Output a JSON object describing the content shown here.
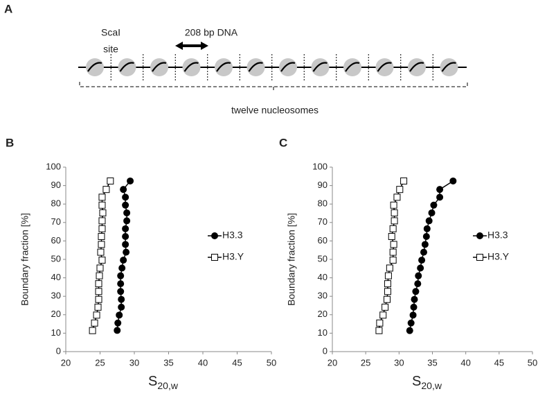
{
  "diagram": {
    "panel_label": "A",
    "site_label": "ScaI",
    "site_label_2": "site",
    "dna_label": "208 bp DNA",
    "array_label": "twelve nucleosomes"
  },
  "chart_data": [
    {
      "type": "scatter",
      "panel_label": "B",
      "x_label": "S",
      "x_label_sub": "20,w",
      "y_label": "Boundary fraction [%]",
      "xlim": [
        20,
        50
      ],
      "xticks": [
        20,
        25,
        30,
        35,
        40,
        45,
        50
      ],
      "ylim": [
        0,
        100
      ],
      "yticks": [
        0,
        10,
        20,
        30,
        40,
        50,
        60,
        70,
        80,
        90,
        100
      ],
      "series": [
        {
          "name": "H3.3",
          "color": "#000000",
          "marker": "circle",
          "x": [
            27.5,
            27.6,
            27.8,
            28.1,
            28.1,
            28.0,
            28.0,
            28.0,
            28.2,
            28.4,
            28.8,
            28.7,
            28.7,
            28.7,
            28.9,
            28.9,
            28.7,
            28.7,
            28.4,
            29.4
          ],
          "values": [
            11.5,
            15.5,
            19.8,
            24.1,
            28.3,
            32.6,
            36.8,
            41.1,
            45.3,
            49.6,
            53.9,
            58.1,
            62.4,
            66.6,
            70.9,
            75.2,
            79.4,
            83.7,
            87.9,
            92.5
          ]
        },
        {
          "name": "H3.Y",
          "color": "#000000",
          "marker": "square",
          "x": [
            23.9,
            24.2,
            24.5,
            24.7,
            24.8,
            24.8,
            24.8,
            24.9,
            25.0,
            25.3,
            25.1,
            25.2,
            25.2,
            25.3,
            25.3,
            25.4,
            25.3,
            25.3,
            25.9,
            26.5
          ],
          "values": [
            11.4,
            15.5,
            19.8,
            24.1,
            28.3,
            32.6,
            36.8,
            41.1,
            45.3,
            49.6,
            53.9,
            58.1,
            62.4,
            66.6,
            70.9,
            75.2,
            79.4,
            83.7,
            87.9,
            92.5
          ]
        }
      ]
    },
    {
      "type": "scatter",
      "panel_label": "C",
      "x_label": "S",
      "x_label_sub": "20,w",
      "y_label": "Boundary fraction [%]",
      "xlim": [
        20,
        50
      ],
      "xticks": [
        20,
        25,
        30,
        35,
        40,
        45,
        50
      ],
      "ylim": [
        0,
        100
      ],
      "yticks": [
        0,
        10,
        20,
        30,
        40,
        50,
        60,
        70,
        80,
        90,
        100
      ],
      "series": [
        {
          "name": "H3.3",
          "color": "#000000",
          "marker": "circle",
          "x": [
            31.6,
            31.8,
            32.1,
            32.2,
            32.3,
            32.5,
            32.8,
            32.9,
            33.2,
            33.4,
            33.7,
            33.9,
            34.1,
            34.2,
            34.5,
            34.9,
            35.2,
            36.1,
            36.1,
            38.1
          ],
          "values": [
            11.4,
            15.5,
            19.8,
            24.1,
            28.3,
            32.6,
            36.8,
            41.1,
            45.3,
            49.6,
            53.9,
            58.1,
            62.4,
            66.6,
            70.9,
            75.2,
            79.4,
            83.7,
            87.9,
            92.5
          ]
        },
        {
          "name": "H3.Y",
          "color": "#000000",
          "marker": "square",
          "x": [
            27.0,
            27.1,
            27.6,
            27.9,
            28.2,
            28.3,
            28.3,
            28.4,
            28.6,
            29.1,
            29.1,
            29.2,
            28.9,
            29.1,
            29.3,
            29.3,
            29.2,
            29.7,
            30.1,
            30.7
          ],
          "values": [
            11.4,
            15.5,
            19.8,
            24.1,
            28.3,
            32.6,
            36.8,
            41.1,
            45.3,
            49.6,
            53.9,
            58.1,
            62.4,
            66.6,
            70.9,
            75.2,
            79.4,
            83.7,
            87.9,
            92.5
          ]
        }
      ]
    }
  ]
}
